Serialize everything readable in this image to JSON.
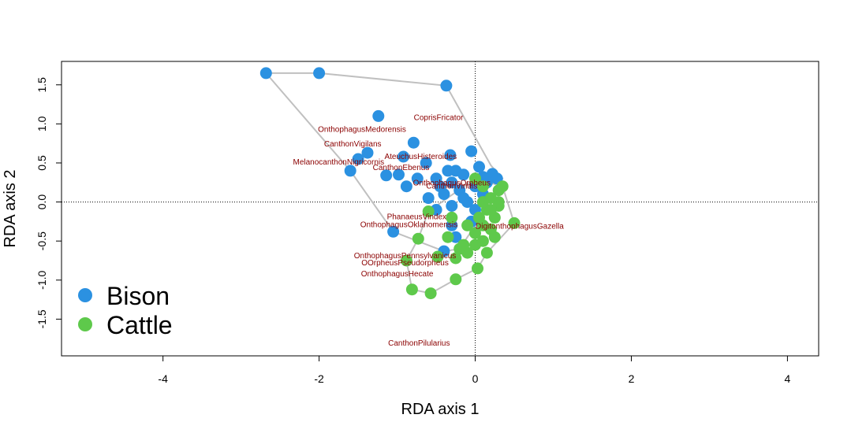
{
  "chart_data": {
    "type": "scatter",
    "title": "",
    "xlabel": "RDA axis 1",
    "ylabel": "RDA axis 2",
    "xlim": [
      -5.3,
      4.4
    ],
    "ylim": [
      -1.97,
      1.8
    ],
    "xticks": [
      -4,
      -2,
      0,
      2,
      4
    ],
    "yticks": [
      -1.5,
      -1.0,
      -0.5,
      0.0,
      0.5,
      1.0,
      1.5
    ],
    "xtick_labels": [
      "-4",
      "-2",
      "0",
      "2",
      "4"
    ],
    "ytick_labels": [
      "-1.5",
      "-1.0",
      "-0.5",
      "0.0",
      "0.5",
      "1.0",
      "1.5"
    ],
    "reference_lines": {
      "x": 0,
      "y": 0,
      "style": "dotted"
    },
    "legend_position": "bottom-left",
    "series": [
      {
        "name": "Bison",
        "color": "#2b91e1",
        "hull": [
          [
            -2.68,
            1.65
          ],
          [
            -2.0,
            1.65
          ],
          [
            -0.37,
            1.49
          ],
          [
            0.2,
            0.47
          ],
          [
            0.35,
            0.3
          ],
          [
            0.2,
            0.0
          ],
          [
            -0.2,
            -0.6
          ],
          [
            -0.4,
            -0.63
          ],
          [
            -1.05,
            -0.38
          ],
          [
            -1.6,
            0.4
          ]
        ],
        "points": [
          [
            -2.68,
            1.65
          ],
          [
            -2.0,
            1.65
          ],
          [
            -0.37,
            1.49
          ],
          [
            -1.24,
            1.1
          ],
          [
            -0.79,
            0.76
          ],
          [
            -1.38,
            0.63
          ],
          [
            -1.5,
            0.55
          ],
          [
            -1.6,
            0.4
          ],
          [
            -0.92,
            0.58
          ],
          [
            -0.63,
            0.5
          ],
          [
            -0.32,
            0.6
          ],
          [
            -0.05,
            0.65
          ],
          [
            -0.98,
            0.35
          ],
          [
            -1.14,
            0.34
          ],
          [
            -0.88,
            0.2
          ],
          [
            -0.74,
            0.3
          ],
          [
            -0.5,
            0.3
          ],
          [
            -0.35,
            0.4
          ],
          [
            -0.25,
            0.4
          ],
          [
            -0.15,
            0.35
          ],
          [
            0.05,
            0.45
          ],
          [
            0.22,
            0.36
          ],
          [
            0.28,
            0.3
          ],
          [
            0.15,
            0.25
          ],
          [
            -0.3,
            0.25
          ],
          [
            -0.45,
            0.2
          ],
          [
            -0.6,
            0.05
          ],
          [
            -0.4,
            0.1
          ],
          [
            -0.2,
            0.15
          ],
          [
            0.0,
            0.2
          ],
          [
            0.1,
            0.1
          ],
          [
            -0.3,
            -0.05
          ],
          [
            -0.1,
            0.0
          ],
          [
            0.0,
            -0.1
          ],
          [
            -0.3,
            -0.3
          ],
          [
            -0.25,
            -0.45
          ],
          [
            -0.4,
            -0.63
          ],
          [
            -1.05,
            -0.38
          ],
          [
            -0.5,
            -0.1
          ],
          [
            0.1,
            0.32
          ],
          [
            -0.15,
            0.05
          ],
          [
            -0.05,
            -0.25
          ]
        ]
      },
      {
        "name": "Cattle",
        "color": "#5ec94b",
        "hull": [
          [
            0.35,
            0.2
          ],
          [
            0.5,
            -0.27
          ],
          [
            0.15,
            -0.65
          ],
          [
            0.03,
            -0.85
          ],
          [
            -0.25,
            -0.99
          ],
          [
            -0.57,
            -1.17
          ],
          [
            -0.81,
            -1.12
          ],
          [
            -0.88,
            -0.75
          ],
          [
            -0.73,
            -0.47
          ],
          [
            -0.6,
            -0.12
          ],
          [
            0.0,
            0.3
          ]
        ],
        "points": [
          [
            -0.57,
            -1.17
          ],
          [
            -0.81,
            -1.12
          ],
          [
            -0.25,
            -0.99
          ],
          [
            0.03,
            -0.85
          ],
          [
            -0.48,
            -0.7
          ],
          [
            -0.88,
            -0.75
          ],
          [
            -0.73,
            -0.47
          ],
          [
            -0.6,
            -0.12
          ],
          [
            -0.3,
            -0.2
          ],
          [
            0.5,
            -0.27
          ],
          [
            0.15,
            -0.65
          ],
          [
            0.35,
            0.2
          ],
          [
            0.3,
            0.15
          ],
          [
            0.3,
            -0.05
          ],
          [
            0.25,
            -0.2
          ],
          [
            0.2,
            -0.35
          ],
          [
            0.1,
            -0.5
          ],
          [
            0.0,
            -0.55
          ],
          [
            -0.1,
            -0.65
          ],
          [
            -0.2,
            -0.6
          ],
          [
            0.0,
            -0.4
          ],
          [
            -0.1,
            -0.3
          ],
          [
            0.05,
            -0.2
          ],
          [
            0.15,
            -0.1
          ],
          [
            0.2,
            0.05
          ],
          [
            0.1,
            0.2
          ],
          [
            0.0,
            0.3
          ],
          [
            -0.15,
            -0.55
          ],
          [
            0.1,
            -0.3
          ],
          [
            0.25,
            -0.45
          ],
          [
            0.3,
            0.0
          ],
          [
            0.2,
            -0.1
          ],
          [
            -0.25,
            -0.72
          ],
          [
            0.1,
            0.0
          ],
          [
            -0.35,
            -0.45
          ]
        ]
      }
    ],
    "species_labels": [
      {
        "text": "CoprisFricator",
        "x": -0.47,
        "y": 1.05
      },
      {
        "text": "OnthophagusMedorensis",
        "x": -1.45,
        "y": 0.9
      },
      {
        "text": "CanthonVigilans",
        "x": -1.57,
        "y": 0.71
      },
      {
        "text": "AteuchusHisteroides",
        "x": -0.7,
        "y": 0.55
      },
      {
        "text": "MelanocanthonNigricornis",
        "x": -1.75,
        "y": 0.48
      },
      {
        "text": "CanthonEbenus",
        "x": -0.95,
        "y": 0.41
      },
      {
        "text": "OnthophagusOrpheus",
        "x": -0.3,
        "y": 0.21
      },
      {
        "text": "CanthonViridis",
        "x": -0.3,
        "y": 0.17
      },
      {
        "text": "PhanaeusVindex",
        "x": -0.75,
        "y": -0.22
      },
      {
        "text": "OnthophagusOklahomensis",
        "x": -0.85,
        "y": -0.32
      },
      {
        "text": "DigitonthophagusGazella",
        "x": 0.57,
        "y": -0.34
      },
      {
        "text": "OnthophagusPennsylvanicus",
        "x": -0.9,
        "y": -0.72
      },
      {
        "text": "OOrpheusPseudorpheus",
        "x": -0.9,
        "y": -0.81
      },
      {
        "text": "OnthophagusHecate",
        "x": -1.0,
        "y": -0.95
      },
      {
        "text": "CanthonPilularius",
        "x": -0.72,
        "y": -1.84
      }
    ]
  },
  "legend": {
    "items": [
      {
        "label": "Bison",
        "color": "#2b91e1"
      },
      {
        "label": "Cattle",
        "color": "#5ec94b"
      }
    ]
  }
}
